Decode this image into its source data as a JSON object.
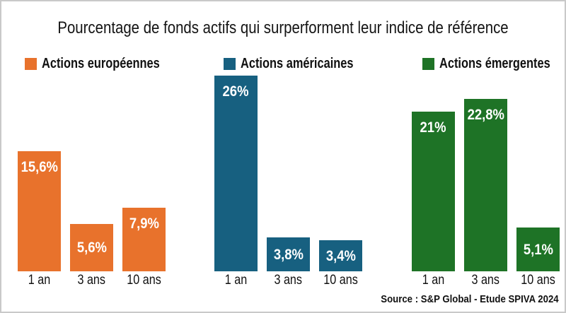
{
  "chart_data": {
    "type": "bar",
    "title": "Pourcentage de fonds actifs qui surperforment leur indice de référence",
    "categories": [
      "1 an",
      "3 ans",
      "10 ans"
    ],
    "series": [
      {
        "name": "Actions européennes",
        "color": "#E8722C",
        "values": [
          15.6,
          5.6,
          7.9
        ],
        "labels": [
          "15,6%",
          "5,6%",
          "7,9%"
        ]
      },
      {
        "name": "Actions américaines",
        "color": "#176080",
        "values": [
          26,
          3.8,
          3.4
        ],
        "labels": [
          "26%",
          "3,8%",
          "3,4%"
        ]
      },
      {
        "name": "Actions émergentes",
        "color": "#1E7326",
        "values": [
          21,
          22.8,
          5.1
        ],
        "labels": [
          "21%",
          "22,8%",
          "5,1%"
        ]
      }
    ],
    "value_unit": "%",
    "ylim": [
      0,
      28
    ],
    "grid": false,
    "legend_position": "top",
    "value_labels": "inside-top",
    "source": "Source : S&P Global - Etude SPIVA 2024"
  },
  "colors": {
    "background": "#ffffff",
    "frame_border": "#c9c9c9",
    "text": "#111111",
    "value_label_text": "#ffffff"
  }
}
